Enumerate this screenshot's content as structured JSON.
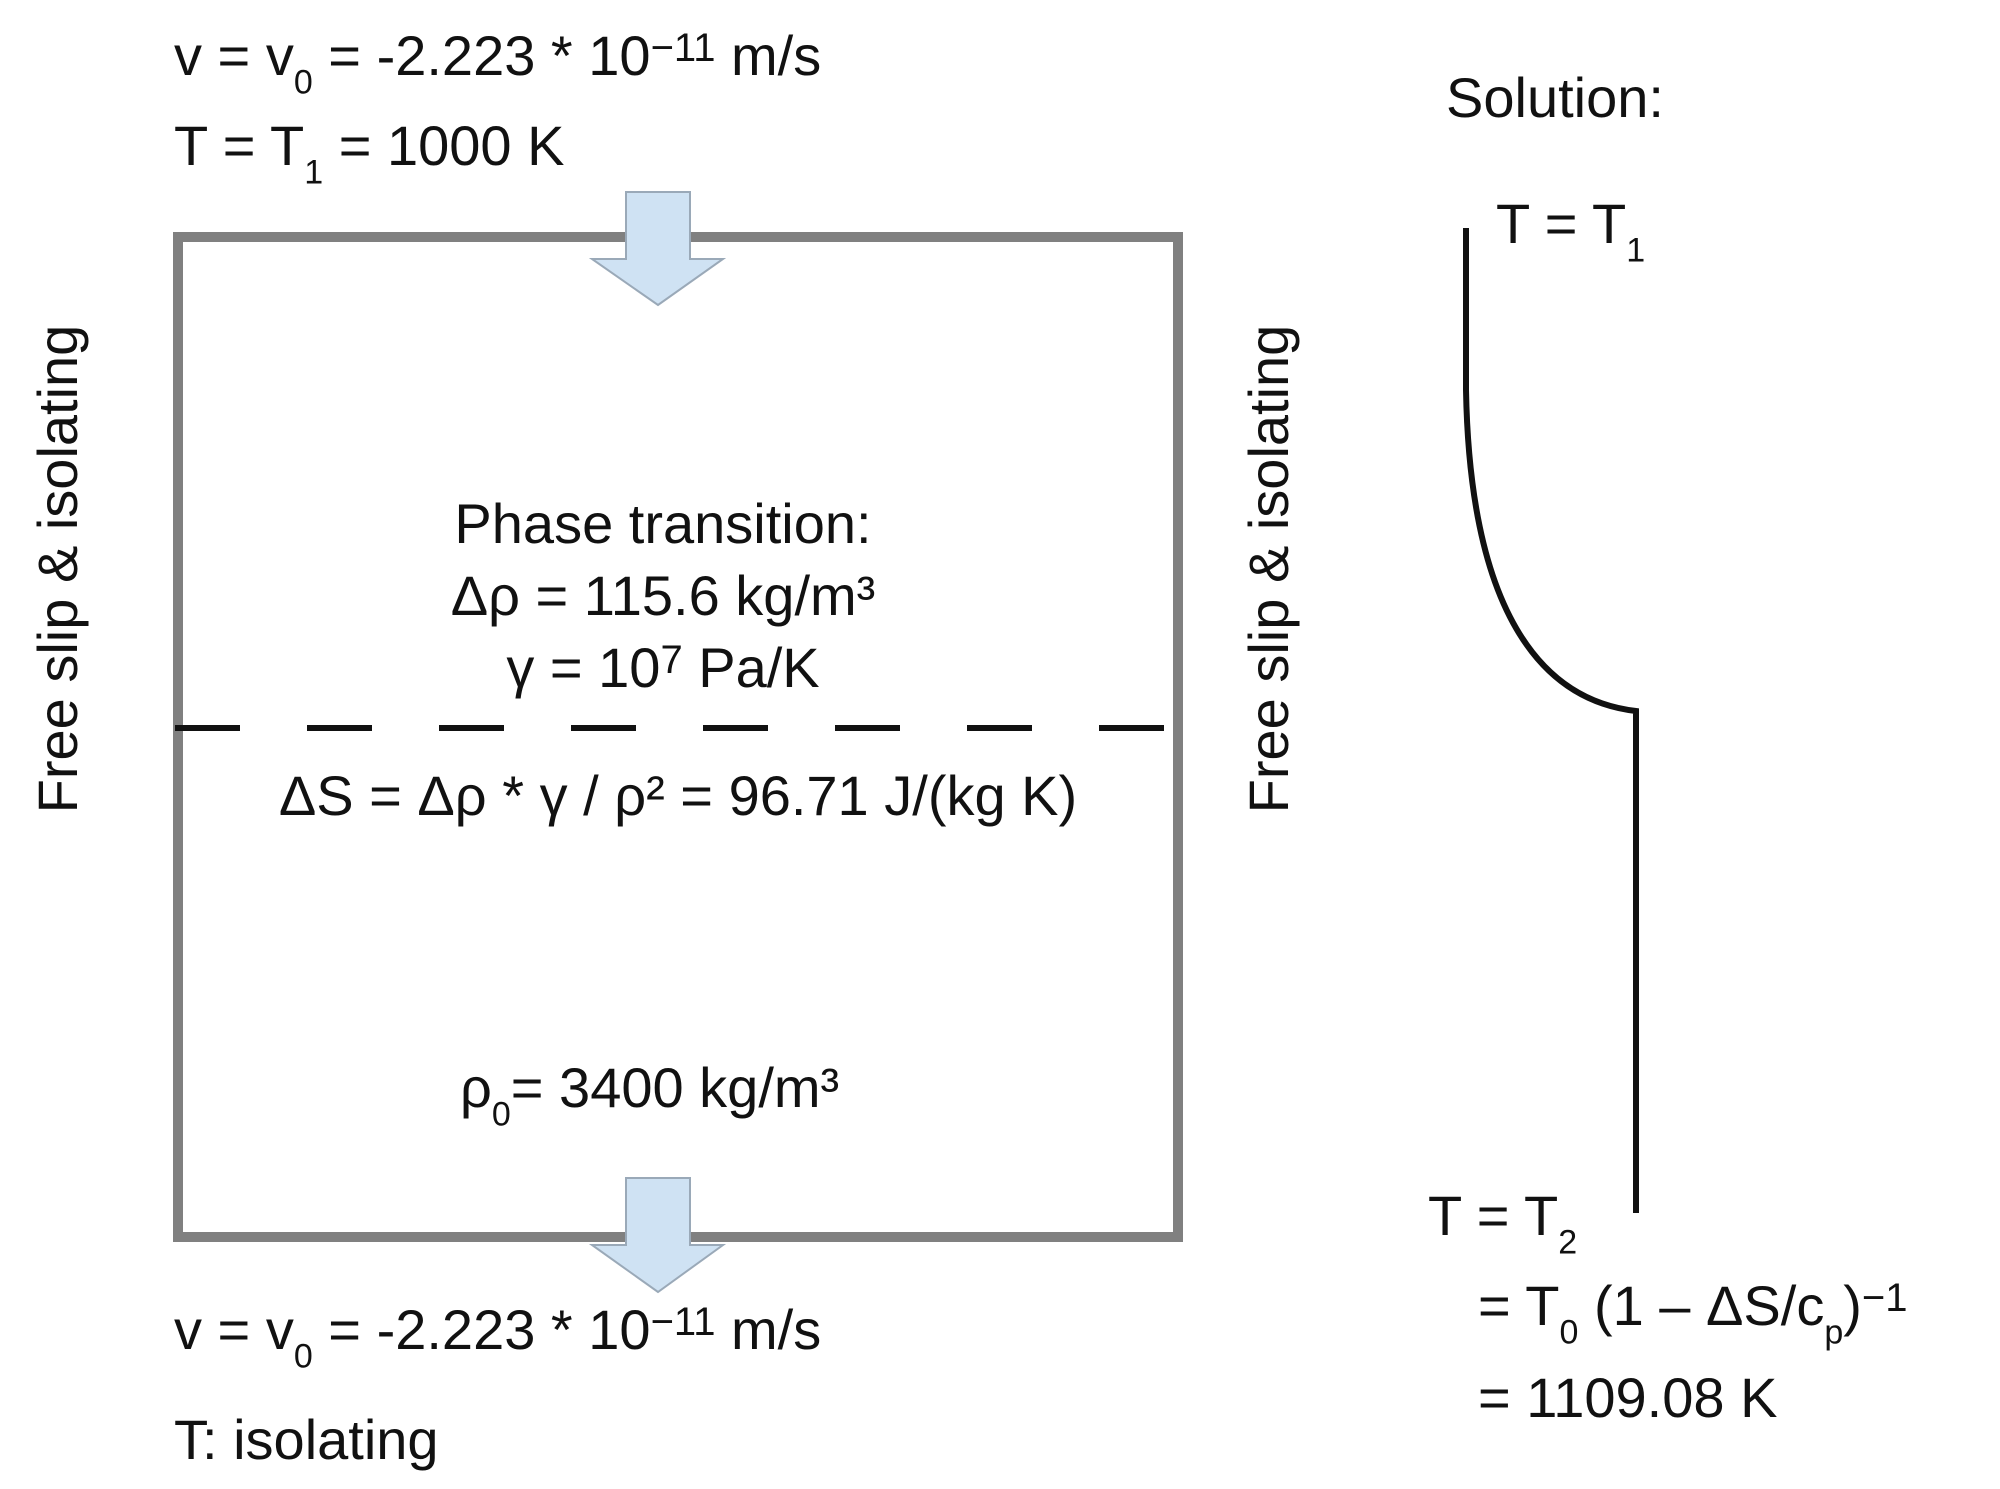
{
  "top_bc": {
    "velocity": {
      "v": "v",
      "eq1": " = v",
      "sub": "0",
      "eq2": " = -2.223 * 10",
      "exp": "−11",
      "unit": " m/s"
    },
    "temperature": {
      "t": "T = T",
      "sub": "1",
      "rest": " = 1000 K"
    }
  },
  "side_bc_label": "Free slip & isolating",
  "phase_transition": {
    "title": "Phase transition:",
    "delta_rho": "Δρ = 115.6 kg/m³",
    "gamma_pre": "γ = 10",
    "gamma_exp": "7",
    "gamma_post": " Pa/K",
    "entropy": "ΔS = Δρ * γ / ρ² = 96.71 J/(kg K)"
  },
  "reference_density": {
    "pre": "ρ",
    "sub": "0",
    "post": "= 3400 kg/m³"
  },
  "bottom_bc": {
    "velocity": {
      "v": "v",
      "eq1": " = v",
      "sub": "0",
      "eq2": " = -2.223 * 10",
      "exp": "−11",
      "unit": " m/s"
    },
    "temperature": "T: isolating"
  },
  "solution": {
    "title": "Solution:",
    "top_label": {
      "pre": "T = T",
      "sub": "1"
    },
    "bottom_label": {
      "line1_pre": "T = T",
      "line1_sub": "2",
      "line2_pre": "= T",
      "line2_sub": "0",
      "line2_mid": " (1 – ΔS/c",
      "line2_sub2": "p",
      "line2_post": ")",
      "line2_exp": "−1",
      "line3": "= 1109.08 K"
    }
  },
  "colors": {
    "box_border": "#808080",
    "arrow_fill": "#cfe2f3",
    "arrow_stroke": "#9aa9b8",
    "ink": "#111111"
  },
  "icons": {
    "inflow_arrow": "down-arrow-icon",
    "outflow_arrow": "down-arrow-icon"
  }
}
